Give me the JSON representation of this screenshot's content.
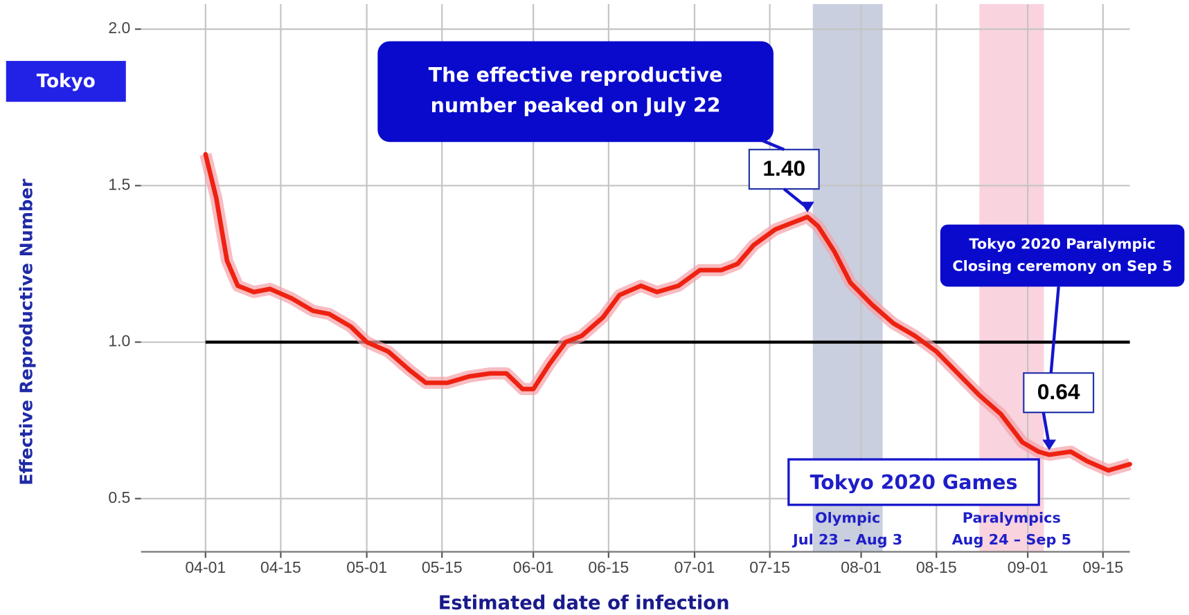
{
  "chart_data": {
    "type": "line",
    "region_label": "Tokyo",
    "x_label": "Estimated date of infection",
    "y_label": "Effective Reproductive Number",
    "x": [
      "04-01",
      "04-03",
      "04-05",
      "04-07",
      "04-10",
      "04-13",
      "04-17",
      "04-21",
      "04-24",
      "04-28",
      "05-01",
      "05-05",
      "05-09",
      "05-12",
      "05-16",
      "05-20",
      "05-24",
      "05-27",
      "05-30",
      "06-01",
      "06-04",
      "06-07",
      "06-10",
      "06-14",
      "06-17",
      "06-21",
      "06-24",
      "06-28",
      "07-02",
      "07-06",
      "07-09",
      "07-12",
      "07-16",
      "07-19",
      "07-22",
      "07-24",
      "07-27",
      "07-30",
      "08-03",
      "08-07",
      "08-11",
      "08-15",
      "08-19",
      "08-23",
      "08-27",
      "08-31",
      "09-03",
      "09-05",
      "09-09",
      "09-12",
      "09-16",
      "09-20"
    ],
    "series": [
      {
        "color": "#ee2211",
        "values": [
          1.6,
          1.46,
          1.26,
          1.18,
          1.16,
          1.17,
          1.14,
          1.1,
          1.09,
          1.05,
          1.0,
          0.97,
          0.91,
          0.87,
          0.87,
          0.89,
          0.9,
          0.9,
          0.85,
          0.85,
          0.93,
          1.0,
          1.02,
          1.08,
          1.15,
          1.18,
          1.16,
          1.18,
          1.23,
          1.23,
          1.25,
          1.31,
          1.36,
          1.38,
          1.4,
          1.37,
          1.29,
          1.19,
          1.12,
          1.06,
          1.02,
          0.97,
          0.9,
          0.83,
          0.77,
          0.68,
          0.65,
          0.64,
          0.65,
          0.62,
          0.59,
          0.61
        ]
      }
    ],
    "reference_line": {
      "value": 1.0,
      "start": "04-01",
      "color": "#000000"
    },
    "xlim": [
      "03-20",
      "09-20"
    ],
    "xticks": [
      "04-01",
      "04-15",
      "05-01",
      "05-15",
      "06-01",
      "06-15",
      "07-01",
      "07-15",
      "08-01",
      "08-15",
      "09-01",
      "09-15"
    ],
    "ylim": [
      0.33,
      2.08
    ],
    "yticks": [
      {
        "value": 0.5,
        "label": "0.5"
      },
      {
        "value": 1.0,
        "label": "1.0"
      },
      {
        "value": 1.5,
        "label": "1.5"
      },
      {
        "value": 2.0,
        "label": "2.0"
      }
    ],
    "grid": true,
    "bands": [
      {
        "start": "07-23",
        "end": "08-05",
        "color": "#c9cfdf",
        "title": "Olympic",
        "dates": "Jul 23 – Aug 3"
      },
      {
        "start": "08-23",
        "end": "09-04",
        "color": "#f9d3de",
        "title": "Paralympics",
        "dates": "Aug 24 – Sep 5"
      }
    ],
    "games_label": "Tokyo 2020 Games",
    "annotations": [
      {
        "callout": "The effective reproductive number peaked on July 22",
        "label": "1.40",
        "x": "07-22",
        "y": 1.4
      },
      {
        "callout": "Tokyo 2020 Paralympic Closing ceremony on Sep 5",
        "label": "0.64",
        "x": "09-05",
        "y": 0.64
      }
    ]
  }
}
